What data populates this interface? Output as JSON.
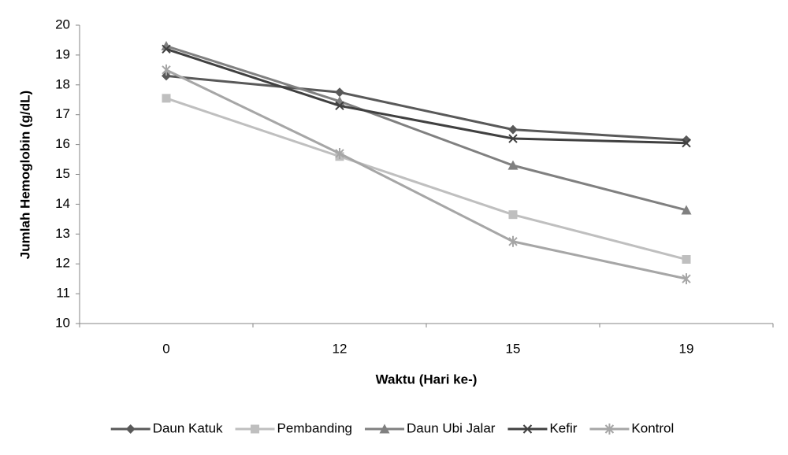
{
  "chart_data": {
    "type": "line",
    "x_label": "Waktu (Hari ke-)",
    "y_label": "Jumlah Hemoglobin (g/dL)",
    "categories": [
      "0",
      "12",
      "15",
      "19"
    ],
    "ylim": [
      10,
      20
    ],
    "yticks": [
      10,
      11,
      12,
      13,
      14,
      15,
      16,
      17,
      18,
      19,
      20
    ],
    "legend": "bottom",
    "series": [
      {
        "name": "Daun Katuk",
        "color": "#595959",
        "marker": "diamond",
        "values": [
          18.3,
          17.75,
          16.5,
          16.15
        ]
      },
      {
        "name": "Pembanding",
        "color": "#bfbfbf",
        "marker": "square",
        "values": [
          17.55,
          15.6,
          13.65,
          12.15
        ]
      },
      {
        "name": "Daun Ubi Jalar",
        "color": "#808080",
        "marker": "triangle",
        "values": [
          19.3,
          17.45,
          15.3,
          13.8
        ]
      },
      {
        "name": "Kefir",
        "color": "#404040",
        "marker": "x",
        "values": [
          19.2,
          17.3,
          16.2,
          16.05
        ]
      },
      {
        "name": "Kontrol",
        "color": "#a6a6a6",
        "marker": "star",
        "values": [
          18.5,
          15.7,
          12.75,
          11.5
        ]
      }
    ]
  }
}
